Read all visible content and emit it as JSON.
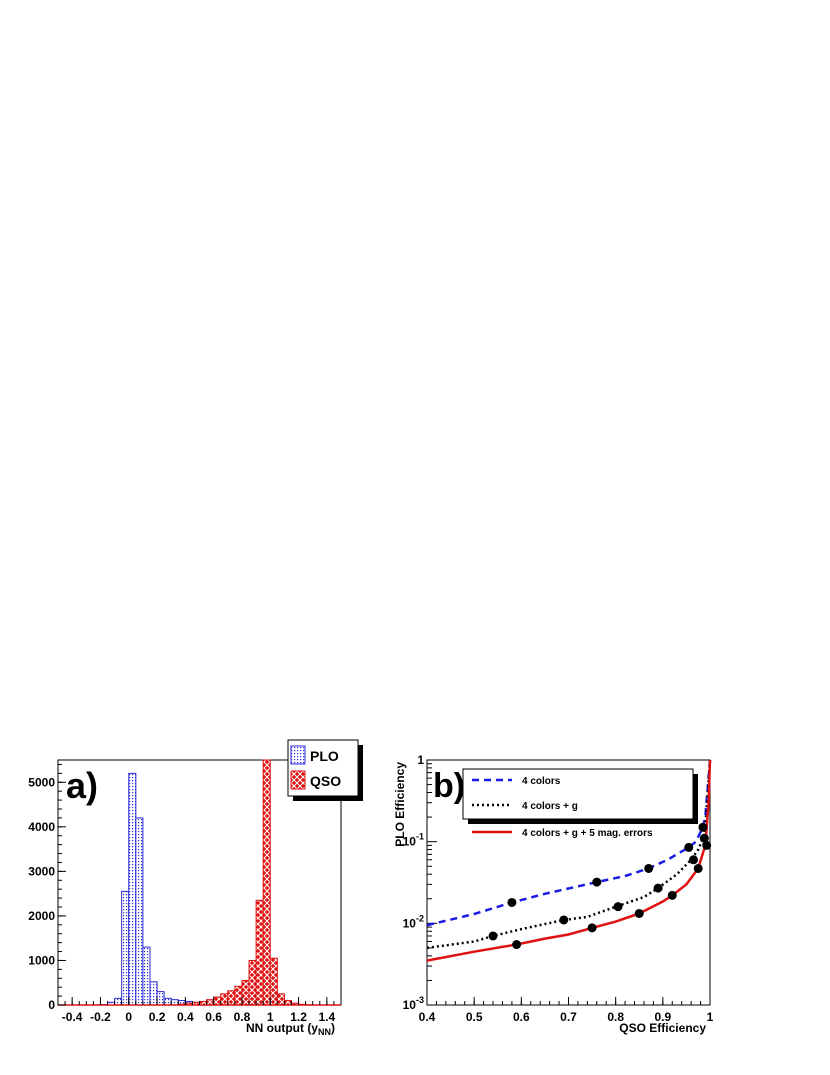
{
  "panel_a": {
    "panel_label": "a)",
    "xlabel_main": "NN output (y",
    "xlabel_sub": "NN",
    "xlabel_close": ")",
    "legend": [
      {
        "label": "PLO",
        "color": "#2b2bd8",
        "pattern": "dots"
      },
      {
        "label": "QSO",
        "color": "#e01010",
        "pattern": "crosshatch"
      }
    ],
    "x_ticks": [
      "-0.4",
      "-0.2",
      "0",
      "0.2",
      "0.4",
      "0.6",
      "0.8",
      "1",
      "1.2",
      "1.4"
    ],
    "y_ticks": [
      "0",
      "1000",
      "2000",
      "3000",
      "4000",
      "5000"
    ]
  },
  "panel_b": {
    "panel_label": "b)",
    "xlabel": "QSO Efficiency",
    "ylabel": "PLO Efficiency",
    "x_ticks": [
      "0.4",
      "0.5",
      "0.6",
      "0.7",
      "0.8",
      "0.9",
      "1"
    ],
    "y_ticks": [
      {
        "base": "10",
        "exp": "-3"
      },
      {
        "base": "10",
        "exp": "-2"
      },
      {
        "base": "10",
        "exp": "-1"
      },
      {
        "base": "1",
        "exp": ""
      }
    ],
    "legend": [
      {
        "label": "4 colors",
        "color": "#1a1ae6",
        "dash": "7,5"
      },
      {
        "label": "4 colors + g",
        "color": "#000000",
        "dash": "2,3"
      },
      {
        "label": "4 colors + g + 5 mag. errors",
        "color": "#e01010",
        "dash": ""
      }
    ]
  },
  "chart_data": [
    {
      "type": "bar",
      "subtype": "histogram",
      "panel": "a",
      "xlabel": "NN output (y NN)",
      "ylabel": "",
      "xlim": [
        -0.5,
        1.5
      ],
      "ylim": [
        0,
        5500
      ],
      "bin_width": 0.05,
      "series": [
        {
          "name": "PLO",
          "bin_starts": [
            -0.2,
            -0.15,
            -0.1,
            -0.05,
            0.0,
            0.05,
            0.1,
            0.15,
            0.2,
            0.25,
            0.3,
            0.35,
            0.4,
            0.45,
            0.5,
            0.55,
            0.6,
            0.65,
            0.7,
            0.75,
            0.8,
            0.85
          ],
          "values": [
            10,
            60,
            150,
            2550,
            5200,
            4200,
            1300,
            520,
            300,
            150,
            120,
            100,
            80,
            60,
            50,
            40,
            30,
            25,
            20,
            15,
            10,
            5
          ]
        },
        {
          "name": "QSO",
          "bin_starts": [
            0.35,
            0.4,
            0.45,
            0.5,
            0.55,
            0.6,
            0.65,
            0.7,
            0.75,
            0.8,
            0.85,
            0.9,
            0.95,
            1.0,
            1.05,
            1.1,
            1.15,
            1.2,
            1.25
          ],
          "values": [
            20,
            40,
            60,
            80,
            120,
            180,
            250,
            320,
            420,
            550,
            1000,
            2350,
            5500,
            1050,
            250,
            100,
            40,
            15,
            5
          ]
        }
      ]
    },
    {
      "type": "line",
      "panel": "b",
      "xlabel": "QSO Efficiency",
      "ylabel": "PLO Efficiency",
      "xlim": [
        0.4,
        1.0
      ],
      "ylim": [
        0.001,
        1.0
      ],
      "y_scale": "log",
      "series": [
        {
          "name": "4 colors",
          "x": [
            0.4,
            0.5,
            0.58,
            0.65,
            0.76,
            0.82,
            0.87,
            0.91,
            0.94,
            0.955,
            0.97,
            0.985,
            0.99,
            1.0
          ],
          "y": [
            0.0095,
            0.013,
            0.018,
            0.023,
            0.032,
            0.038,
            0.047,
            0.06,
            0.076,
            0.085,
            0.1,
            0.15,
            0.2,
            1.0
          ],
          "markers": {
            "x": [
              0.58,
              0.76,
              0.87,
              0.955,
              0.985
            ],
            "y": [
              0.018,
              0.032,
              0.047,
              0.085,
              0.15
            ]
          }
        },
        {
          "name": "4 colors + g",
          "x": [
            0.4,
            0.5,
            0.54,
            0.6,
            0.69,
            0.74,
            0.8,
            0.86,
            0.89,
            0.93,
            0.96,
            0.975,
            0.985,
            0.99,
            1.0
          ],
          "y": [
            0.005,
            0.006,
            0.007,
            0.0085,
            0.011,
            0.012,
            0.016,
            0.021,
            0.027,
            0.04,
            0.06,
            0.08,
            0.11,
            0.15,
            1.0
          ],
          "markers": {
            "x": [
              0.54,
              0.69,
              0.805,
              0.89,
              0.965,
              0.988
            ],
            "y": [
              0.007,
              0.011,
              0.016,
              0.027,
              0.06,
              0.11
            ]
          }
        },
        {
          "name": "4 colors + g + 5 mag. errors",
          "x": [
            0.4,
            0.5,
            0.59,
            0.65,
            0.7,
            0.75,
            0.8,
            0.85,
            0.9,
            0.92,
            0.95,
            0.975,
            0.99,
            0.997,
            1.0
          ],
          "y": [
            0.0035,
            0.0045,
            0.0055,
            0.0065,
            0.0073,
            0.0088,
            0.0105,
            0.0132,
            0.0185,
            0.022,
            0.03,
            0.047,
            0.09,
            0.3,
            1.0
          ],
          "markers": {
            "x": [
              0.59,
              0.75,
              0.85,
              0.92,
              0.975,
              0.993
            ],
            "y": [
              0.0055,
              0.0088,
              0.0132,
              0.022,
              0.047,
              0.09
            ]
          }
        }
      ]
    }
  ]
}
